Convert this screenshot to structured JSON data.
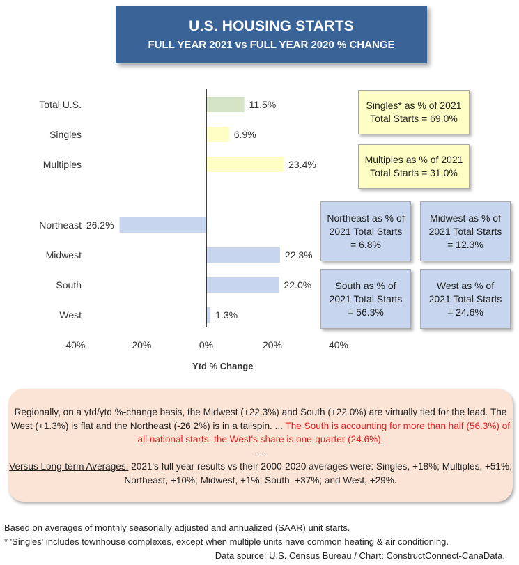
{
  "header": {
    "title": "U.S. HOUSING STARTS",
    "subtitle": "FULL YEAR 2021 vs FULL YEAR 2020 % CHANGE"
  },
  "chart_data": {
    "type": "bar",
    "orientation": "horizontal",
    "categories": [
      "Total U.S.",
      "Singles",
      "Multiples",
      "Northeast",
      "Midwest",
      "South",
      "West"
    ],
    "values": [
      11.5,
      6.9,
      23.4,
      -26.2,
      22.3,
      22.0,
      1.3
    ],
    "value_labels": [
      "11.5%",
      "6.9%",
      "23.4%",
      "-26.2%",
      "22.3%",
      "22.0%",
      "1.3%"
    ],
    "bar_colors": [
      "#d5e4c4",
      "#ffffc5",
      "#ffffc5",
      "#c7d6ee",
      "#c7d6ee",
      "#c7d6ee",
      "#c7d6ee"
    ],
    "xlim": [
      -40,
      40
    ],
    "xticks": [
      -40,
      -20,
      0,
      20,
      40
    ],
    "xtick_labels": [
      "-40%",
      "-20%",
      "0%",
      "20%",
      "40%"
    ],
    "xlabel": "Ytd % Change",
    "grid": false
  },
  "info_boxes": {
    "singles": "Singles* as % of 2021 Total Starts = 69.0%",
    "multiples": "Multiples as % of 2021 Total Starts = 31.0%",
    "northeast": "Northeast as % of 2021 Total Starts = 6.8%",
    "midwest": "Midwest as % of 2021 Total Starts = 12.3%",
    "south": "South as % of 2021 Total Starts = 56.3%",
    "west": "West as % of 2021 Total Starts = 24.6%"
  },
  "summary": {
    "p1_black": "Regionally, on a ytd/ytd %-change basis, the Midwest (+22.3%) and South (+22.0%) are virtually tied for the lead. The West (+1.3%) is flat and the Northeast (-26.2%) is in a tailspin.  ... ",
    "p1_red": "The South is accounting for more than half (56.3%) of all national starts; the West's share is one-quarter (24.6%).",
    "separator": "----",
    "p2_heading": "Versus Long-term Averages:",
    "p2_text": " 2021's full year results vs their 2000-2020 averages were: Singles, +18%; Multiples, +51%; Northeast, +10%; Midwest, +1%; South, +37%; and West, +29%."
  },
  "footnotes": {
    "line1": "Based on averages of monthly seasonally adjusted and annualized (SAAR) unit starts.",
    "line2": "* 'Singles' includes townhouse complexes, except when multiple units have common heating & air conditioning.",
    "source": "Data source: U.S. Census Bureau / Chart: ConstructConnect-CanaData."
  }
}
